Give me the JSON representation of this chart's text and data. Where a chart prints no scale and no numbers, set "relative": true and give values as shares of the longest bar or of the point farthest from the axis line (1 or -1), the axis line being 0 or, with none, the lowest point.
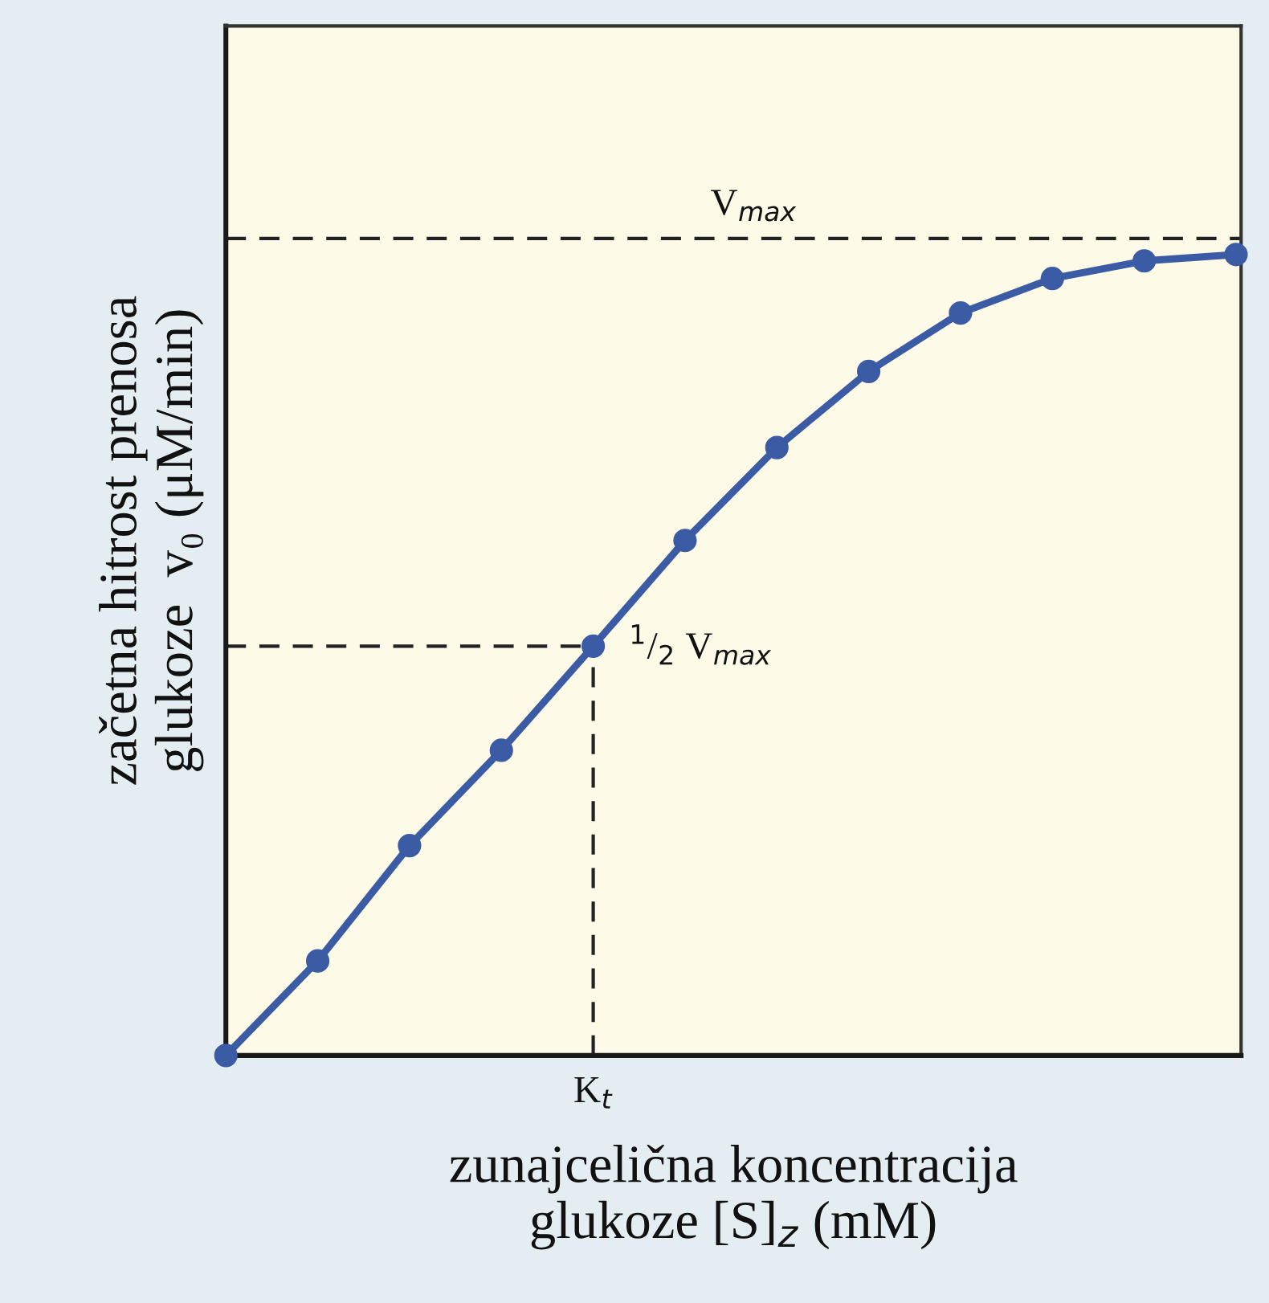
{
  "chart_data": {
    "type": "line",
    "relative": true,
    "xlabel": "zunajcelična koncentracija\nglukoze [S]$_{z}$ (mM)",
    "ylabel": "začetna hitrost prenosa\nglukoze  v₀ (μM/min)",
    "tick_labels": false,
    "marker": "circle",
    "line_style": "solid",
    "categories": [
      null,
      null,
      null,
      null,
      null,
      null,
      null,
      null,
      null,
      null,
      null,
      null
    ],
    "series": [
      {
        "color": "#3b5ba5",
        "values": [
          0,
          0.118,
          0.262,
          0.381,
          0.511,
          0.643,
          0.759,
          0.854,
          0.927,
          0.97,
          0.992,
          1.0
        ]
      }
    ],
    "ref_lines": [
      {
        "axis": "y",
        "value": 1.02,
        "label": "V$_{max}$",
        "color": "#222222",
        "line_style": "dashed"
      },
      {
        "axis": "y",
        "value": 0.511,
        "label": "$^{1}$/$_{2}$ V$_{max}$",
        "color": "#222222",
        "line_style": "dashed"
      }
    ],
    "annotations": [
      "K$_{t}$"
    ]
  }
}
